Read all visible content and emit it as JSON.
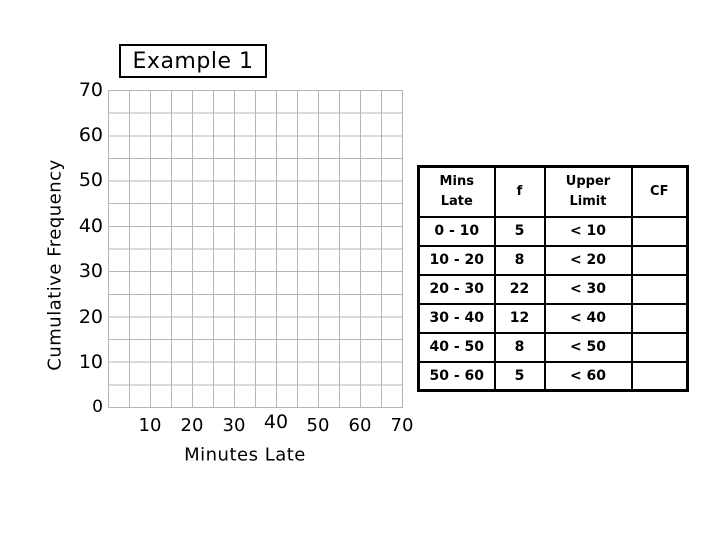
{
  "title": "Example 1",
  "chart": {
    "y_axis_title": "Cumulative Frequency",
    "x_axis_title": "Minutes Late",
    "y_ticks": [
      "70",
      "60",
      "50",
      "40",
      "30",
      "20",
      "10",
      "0"
    ],
    "x_ticks": [
      "10",
      "20",
      "30",
      "40",
      "50",
      "60",
      "70"
    ]
  },
  "chart_data": {
    "type": "table",
    "title": "Example 1",
    "xlabel": "Minutes Late",
    "ylabel": "Cumulative Frequency",
    "xlim": [
      0,
      70
    ],
    "ylim": [
      0,
      70
    ],
    "x_ticks": [
      10,
      20,
      30,
      40,
      50,
      60,
      70
    ],
    "y_ticks": [
      0,
      10,
      20,
      30,
      40,
      50,
      60,
      70
    ],
    "grid": true,
    "plotted_series": [],
    "note": "empty grid awaiting cumulative frequency plot",
    "categories": [
      "0 - 10",
      "10 - 20",
      "20 - 30",
      "30 - 40",
      "40 - 50",
      "50 - 60"
    ],
    "frequencies": [
      5,
      8,
      22,
      12,
      8,
      5
    ],
    "upper_limits": [
      "< 10",
      "< 20",
      "< 30",
      "< 40",
      "< 50",
      "< 60"
    ],
    "cumulative_frequencies": [
      "",
      "",
      "",
      "",
      "",
      ""
    ]
  },
  "table": {
    "headers": [
      "Mins Late",
      "f",
      "Upper Limit",
      "CF"
    ],
    "rows": [
      {
        "cells": [
          "0 - 10",
          "5",
          "< 10",
          ""
        ]
      },
      {
        "cells": [
          "10 - 20",
          "8",
          "< 20",
          ""
        ]
      },
      {
        "cells": [
          "20 - 30",
          "22",
          "< 30",
          ""
        ]
      },
      {
        "cells": [
          "30 - 40",
          "12",
          "< 40",
          ""
        ]
      },
      {
        "cells": [
          "40 - 50",
          "8",
          "< 50",
          ""
        ]
      },
      {
        "cells": [
          "50 - 60",
          "5",
          "< 60",
          ""
        ]
      }
    ]
  },
  "colors": {
    "grid_line": "#b5b5b5",
    "border": "#000000",
    "background": "#ffffff"
  }
}
